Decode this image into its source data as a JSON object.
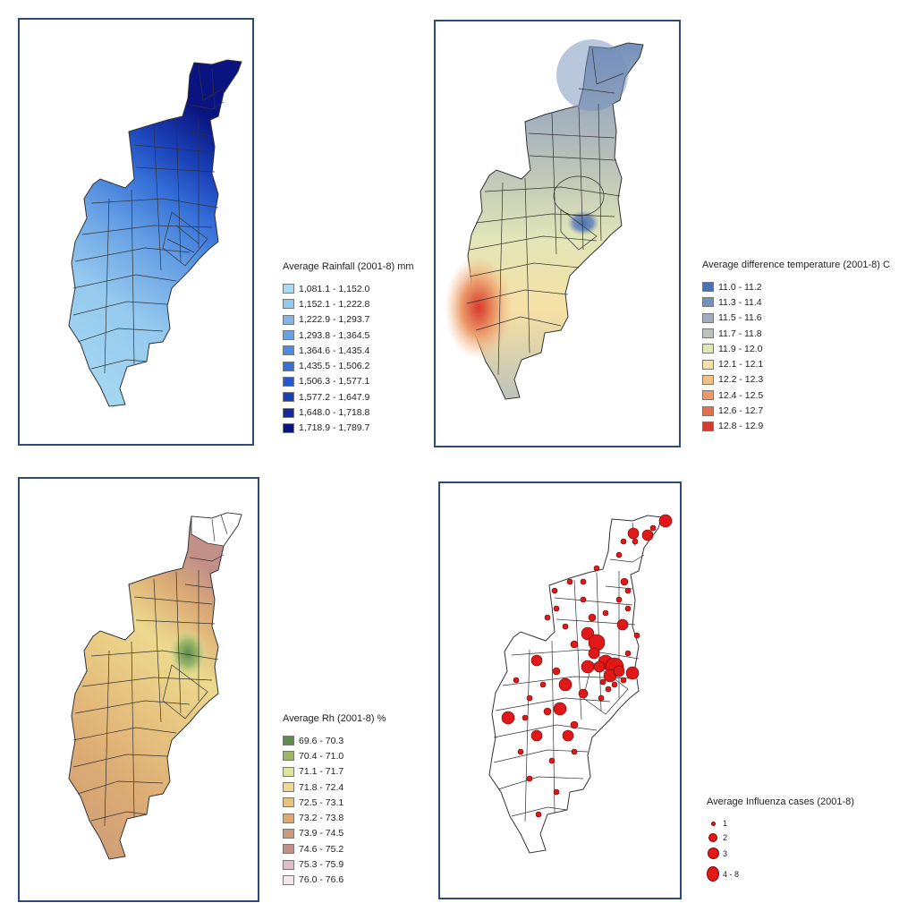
{
  "maps": {
    "rainfall": {
      "title": "Average Rainfall (2001-8) mm",
      "classes": [
        {
          "label": "1,081.1 - 1,152.0",
          "color": "#a9dcf2"
        },
        {
          "label": "1,152.1 - 1,222.8",
          "color": "#95c9ee"
        },
        {
          "label": "1,222.9 - 1,293.7",
          "color": "#7fb6ea"
        },
        {
          "label": "1,293.8 - 1,364.5",
          "color": "#68a2e5"
        },
        {
          "label": "1,364.6 - 1,435.4",
          "color": "#4d8ae0"
        },
        {
          "label": "1,435.5 - 1,506.2",
          "color": "#3470d8"
        },
        {
          "label": "1,506.3 - 1,577.1",
          "color": "#2558cc"
        },
        {
          "label": "1,577.2 - 1,647.9",
          "color": "#1a40b8"
        },
        {
          "label": "1,648.0 - 1,718.8",
          "color": "#12299c"
        },
        {
          "label": "1,718.9 - 1,789.7",
          "color": "#0a1480"
        }
      ]
    },
    "temperature": {
      "title": "Average difference temperature (2001-8) C",
      "classes": [
        {
          "label": "11.0 - 11.2",
          "color": "#4a72b0"
        },
        {
          "label": "11.3 - 11.4",
          "color": "#7490bb"
        },
        {
          "label": "11.5 - 11.6",
          "color": "#9eadbd"
        },
        {
          "label": "11.7 - 11.8",
          "color": "#bcc3b9"
        },
        {
          "label": "11.9 - 12.0",
          "color": "#e1e6b7"
        },
        {
          "label": "12.1 - 12.1",
          "color": "#f6e0a4"
        },
        {
          "label": "12.2 - 12.3",
          "color": "#f4c08a"
        },
        {
          "label": "12.4 - 12.5",
          "color": "#ec9a6a"
        },
        {
          "label": "12.6 - 12.7",
          "color": "#e2704c"
        },
        {
          "label": "12.8 - 12.9",
          "color": "#d63a2e"
        }
      ]
    },
    "humidity": {
      "title": "Average Rh (2001-8) %",
      "classes": [
        {
          "label": "69.6 - 70.3",
          "color": "#5e8c4e"
        },
        {
          "label": "70.4 - 71.0",
          "color": "#9bb86a"
        },
        {
          "label": "71.1 - 71.7",
          "color": "#dfe49a"
        },
        {
          "label": "71.8 - 72.4",
          "color": "#ecd98e"
        },
        {
          "label": "72.5 - 73.1",
          "color": "#e6c17e"
        },
        {
          "label": "73.2 - 73.8",
          "color": "#dcac74"
        },
        {
          "label": "73.9 - 74.5",
          "color": "#cc9a78"
        },
        {
          "label": "74.6 - 75.2",
          "color": "#c29088"
        },
        {
          "label": "75.3 - 75.9",
          "color": "#e2bcc6"
        },
        {
          "label": "76.0 - 76.6",
          "color": "#f5e6ee"
        }
      ]
    },
    "influenza": {
      "title": "Average Influenza cases (2001-8)",
      "classes": [
        {
          "label": "1",
          "size": "small"
        },
        {
          "label": "2",
          "size": "medium"
        },
        {
          "label": "3",
          "size": "large"
        },
        {
          "label": "4 - 8",
          "size": "xlarge"
        }
      ],
      "marker_color": "#e01818"
    }
  }
}
